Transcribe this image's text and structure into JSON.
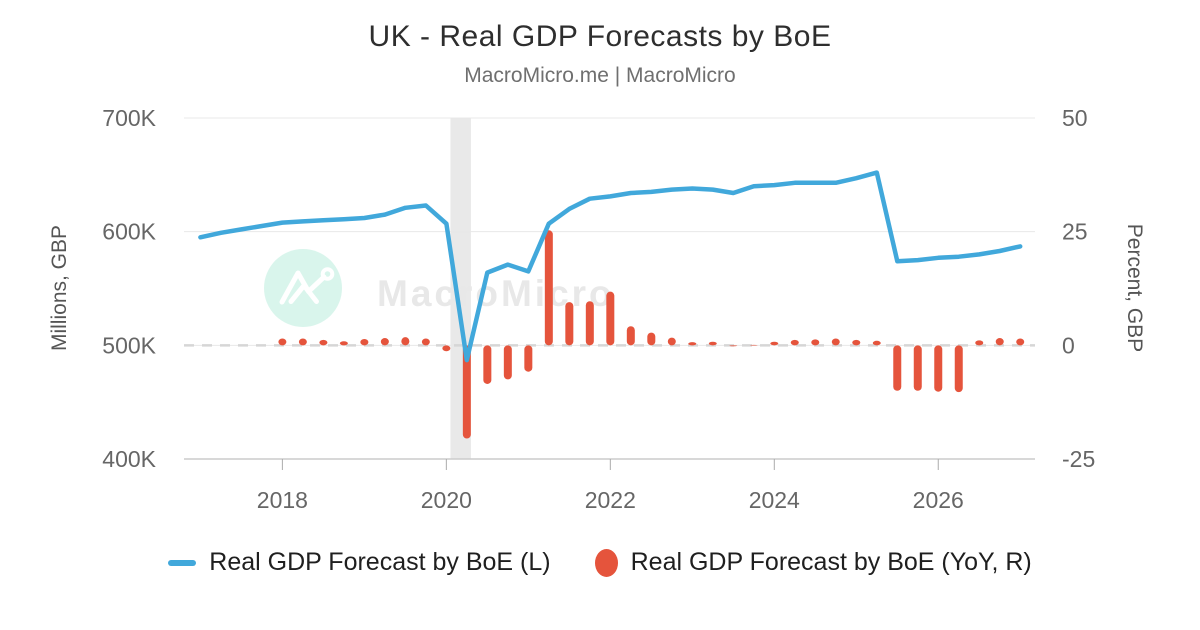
{
  "watermark": {
    "text": "MacroMicro",
    "logo": "macromicro-logo",
    "circle_color": "#d9f5ec",
    "text_color": "#e8e8e8"
  },
  "theme": {
    "line_color": "#41a8db",
    "bar_color": "#e5543c",
    "grid_color": "#e8e8e8",
    "zero_line_color": "#d6d6d6",
    "axis_line_color": "#cccccc",
    "tick_color": "#ababab",
    "tick_label_color": "#666666",
    "axis_title_color": "#555555",
    "recession_band_color": "#e9e9e9"
  },
  "chart_data": {
    "type": "line",
    "title": "UK - Real GDP Forecasts by BoE",
    "subtitle": "MacroMicro.me | MacroMicro",
    "grid": true,
    "legend_position": "bottom",
    "x": [
      2017,
      2017.25,
      2017.5,
      2017.75,
      2018,
      2018.25,
      2018.5,
      2018.75,
      2019,
      2019.25,
      2019.5,
      2019.75,
      2020,
      2020.25,
      2020.5,
      2020.75,
      2021,
      2021.25,
      2021.5,
      2021.75,
      2022,
      2022.25,
      2022.5,
      2022.75,
      2023,
      2023.25,
      2023.5,
      2023.75,
      2024,
      2024.25,
      2024.5,
      2024.75,
      2025,
      2025.25,
      2025.5,
      2025.75,
      2026,
      2026.25,
      2026.5,
      2026.75,
      2027
    ],
    "series": [
      {
        "name": "Real GDP Forecast by BoE (L)",
        "type": "line",
        "axis": "left",
        "unit": "K, Millions GBP",
        "color": "#41a8db",
        "values": [
          595,
          599,
          602,
          605,
          608,
          609,
          610,
          611,
          612,
          615,
          621,
          623,
          607,
          487,
          564,
          571,
          565,
          607,
          620,
          629,
          631,
          634,
          635,
          637,
          638,
          637,
          634,
          640,
          641,
          643,
          643,
          643,
          647,
          652,
          574,
          575,
          577,
          578,
          580,
          583,
          587
        ]
      },
      {
        "name": "Real GDP Forecast by BoE (YoY, R)",
        "type": "bar",
        "axis": "right",
        "unit": "%",
        "color": "#e5543c",
        "values": [
          null,
          null,
          null,
          null,
          1.5,
          1.5,
          1.2,
          0.9,
          1.4,
          1.6,
          1.8,
          1.5,
          -1.3,
          -20.5,
          -8.5,
          -7.5,
          -5.8,
          25.3,
          9.5,
          9.7,
          11.8,
          4.2,
          2.8,
          1.7,
          0.7,
          0.8,
          -0.2,
          0.1,
          0.8,
          1.2,
          1.3,
          1.5,
          1.2,
          1.0,
          -10.0,
          -10.0,
          -10.2,
          -10.3,
          1.1,
          1.6,
          1.5
        ]
      }
    ],
    "x_axis": {
      "tick_values": [
        2018,
        2020,
        2022,
        2024,
        2026
      ],
      "tick_labels": [
        "2018",
        "2020",
        "2022",
        "2024",
        "2026"
      ],
      "range": [
        2016.8,
        2027.18
      ]
    },
    "left_axis": {
      "title": "Millions, GBP",
      "tick_values": [
        700,
        600,
        500,
        400
      ],
      "tick_labels": [
        "700K",
        "600K",
        "500K",
        "400K"
      ],
      "range": [
        400,
        700
      ]
    },
    "right_axis": {
      "title": "Percent, GBP",
      "tick_values": [
        50,
        25,
        0,
        -25
      ],
      "tick_labels": [
        "50",
        "25",
        "0",
        "-25"
      ],
      "range": [
        -25,
        50
      ]
    },
    "recession_band": {
      "from": 2020.05,
      "to": 2020.3
    }
  }
}
